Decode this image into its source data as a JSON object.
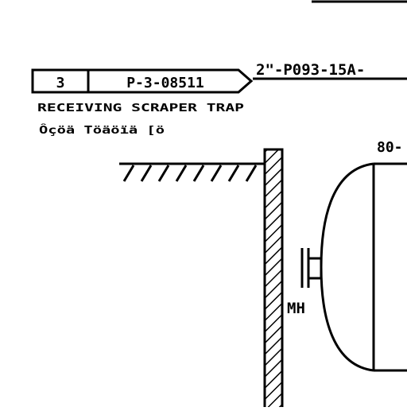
{
  "line_tag": "2\"-P093-15A-",
  "connector": {
    "sheet": "3",
    "drawing_ref": "P-3-08511"
  },
  "connector_caption": "RECEIVING SCRAPER TRAP",
  "connector_caption_local": "Ôçöä Töäöïä [ö",
  "nozzle_label": "MH",
  "corner_fragment": "80-"
}
